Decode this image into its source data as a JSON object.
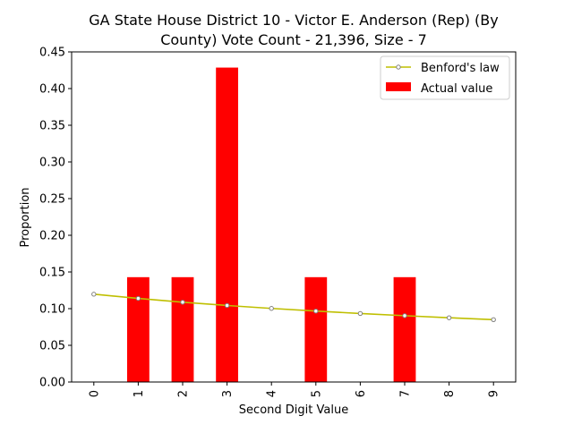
{
  "chart_data": {
    "type": "bar",
    "title_line1": "GA State House District 10 - Victor E. Anderson (Rep) (By",
    "title_line2": "County) Vote Count - 21,396, Size - 7",
    "xlabel": "Second Digit Value",
    "ylabel": "Proportion",
    "categories": [
      "0",
      "1",
      "2",
      "3",
      "4",
      "5",
      "6",
      "7",
      "8",
      "9"
    ],
    "ylim": [
      0,
      0.45
    ],
    "yticks": [
      "0.00",
      "0.05",
      "0.10",
      "0.15",
      "0.20",
      "0.25",
      "0.30",
      "0.35",
      "0.40",
      "0.45"
    ],
    "grid": false,
    "legend_position": "top-right",
    "series": [
      {
        "name": "Actual value",
        "kind": "bar",
        "color": "#ff0000",
        "values": [
          0,
          0.1429,
          0.1429,
          0.4286,
          0,
          0.1429,
          0,
          0.1429,
          0,
          0
        ]
      },
      {
        "name": "Benford's law",
        "kind": "line",
        "color": "#bfbf00",
        "marker_edge": "#808080",
        "values": [
          0.1197,
          0.1139,
          0.1088,
          0.1043,
          0.1003,
          0.0967,
          0.0934,
          0.0904,
          0.0876,
          0.085
        ]
      }
    ]
  }
}
